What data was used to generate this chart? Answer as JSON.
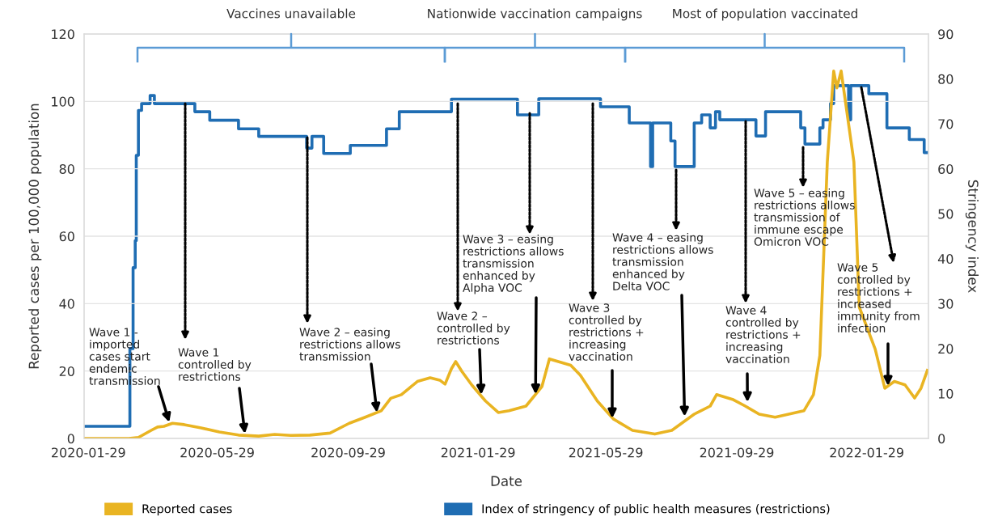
{
  "chart_data": {
    "type": "line",
    "xlabel": "Date",
    "ylabel": "Reported cases per 100,000 population",
    "y2label": "Stringency index",
    "series": [
      {
        "name": "Reported cases",
        "color": "#e9b422",
        "axis": "y",
        "x": [
          "2020-01-25",
          "2020-03-07",
          "2020-03-16",
          "2020-03-28",
          "2020-04-03",
          "2020-04-09",
          "2020-04-17",
          "2020-04-28",
          "2020-05-13",
          "2020-05-31",
          "2020-06-18",
          "2020-07-07",
          "2020-07-22",
          "2020-08-06",
          "2020-08-24",
          "2020-09-12",
          "2020-09-30",
          "2020-10-15",
          "2020-10-30",
          "2020-11-08",
          "2020-11-18",
          "2020-12-03",
          "2020-12-15",
          "2020-12-24",
          "2020-12-29",
          "2021-01-04",
          "2021-01-08",
          "2021-01-14",
          "2021-01-23",
          "2021-02-05",
          "2021-02-17",
          "2021-02-27",
          "2021-03-15",
          "2021-03-30",
          "2021-04-06",
          "2021-04-26",
          "2021-05-05",
          "2021-05-21",
          "2021-06-05",
          "2021-06-23",
          "2021-07-14",
          "2021-07-30",
          "2021-08-20",
          "2021-09-04",
          "2021-09-10",
          "2021-09-25",
          "2021-10-07",
          "2021-10-20",
          "2021-11-04",
          "2021-12-01",
          "2021-12-10",
          "2021-12-16",
          "2021-12-23",
          "2021-12-29",
          "2022-01-01",
          "2022-01-05",
          "2022-01-17",
          "2022-01-22",
          "2022-02-06",
          "2022-02-15",
          "2022-02-24",
          "2022-03-06",
          "2022-03-15",
          "2022-03-21",
          "2022-03-27"
        ],
        "values": [
          0,
          0,
          0.3,
          2.4,
          3.4,
          3.6,
          4.5,
          4.1,
          3.2,
          1.9,
          1.0,
          0.7,
          1.2,
          0.9,
          1.0,
          1.6,
          4.5,
          6.3,
          8.2,
          11.9,
          13.0,
          16.9,
          18.0,
          17.3,
          16.1,
          20.7,
          22.8,
          19.8,
          15.9,
          11.1,
          7.7,
          8.2,
          9.6,
          15.4,
          23.6,
          21.7,
          18.8,
          11.1,
          5.8,
          2.4,
          1.3,
          2.4,
          7.2,
          9.6,
          13.0,
          11.6,
          9.6,
          7.2,
          6.3,
          8.2,
          13.0,
          24.6,
          82,
          109,
          104,
          109,
          82,
          39,
          26.5,
          14.9,
          16.9,
          15.9,
          12.0,
          14.9,
          20.2
        ]
      },
      {
        "name": "Index of stringency of public health measures (restrictions)",
        "color": "#1f6db3",
        "type": "step",
        "axis": "y2",
        "x": [
          "2020-01-25",
          "2020-03-08",
          "2020-03-11",
          "2020-03-13",
          "2020-03-14",
          "2020-03-16",
          "2020-03-19",
          "2020-03-27",
          "2020-03-31",
          "2020-05-08",
          "2020-05-22",
          "2020-06-18",
          "2020-07-07",
          "2020-08-21",
          "2020-08-26",
          "2020-09-06",
          "2020-10-01",
          "2020-11-04",
          "2020-11-16",
          "2021-01-04",
          "2021-03-07",
          "2021-03-27",
          "2021-05-24",
          "2021-06-20",
          "2021-07-10",
          "2021-07-12",
          "2021-07-29",
          "2021-08-02",
          "2021-08-20",
          "2021-08-27",
          "2021-09-04",
          "2021-09-09",
          "2021-09-13",
          "2021-10-17",
          "2021-10-26",
          "2021-11-28",
          "2021-12-02",
          "2021-12-16",
          "2021-12-19",
          "2021-12-26",
          "2021-12-29",
          "2022-01-12",
          "2022-01-14",
          "2022-01-31",
          "2022-02-17",
          "2022-03-10",
          "2022-03-24",
          "2022-03-27"
        ],
        "values": [
          2.7,
          20,
          38,
          44,
          63,
          73,
          74.5,
          76.3,
          74.5,
          72.7,
          70.8,
          68.9,
          67.2,
          64.6,
          67.2,
          63.4,
          65.2,
          68.9,
          72.7,
          75.5,
          72.0,
          75.6,
          73.8,
          70.2,
          60.5,
          70.2,
          66.2,
          60.5,
          70.2,
          72.0,
          69.1,
          72.7,
          70.9,
          67.3,
          72.7,
          69.1,
          65.5,
          69.1,
          70.9,
          74.5,
          78.5,
          70.9,
          78.5,
          76.7,
          69.1,
          66.5,
          63.6,
          63.6
        ]
      }
    ],
    "xlim": [
      "2020-01-25",
      "2022-03-28"
    ],
    "xticks": [
      "2020-01-29",
      "2020-05-29",
      "2020-09-29",
      "2021-01-29",
      "2021-05-29",
      "2021-09-29",
      "2022-01-29"
    ],
    "ylim": [
      0,
      120
    ],
    "yticks": [
      0,
      20,
      40,
      60,
      80,
      100,
      120
    ],
    "y2lim": [
      0,
      90
    ],
    "y2ticks": [
      0,
      10,
      20,
      30,
      40,
      50,
      60,
      70,
      80,
      90
    ],
    "grid": "y",
    "legend": "bottom",
    "annotations": [
      "Vaccines unavailable",
      "Nationwide vaccination campaigns",
      "Most of population vaccinated",
      {
        "text": "Wave 1 -\nimported\ncases start\nendemic\ntransmission",
        "x": "2020-04-14",
        "y": 4.8
      },
      {
        "text": "Wave 1\ncontrolled by\nrestrictions",
        "x": "2020-06-24",
        "y": 1.4
      },
      {
        "text": "Wave 2 – easing\nrestrictions allows\ntransmission",
        "x": "2020-10-26",
        "y": 7.7
      },
      {
        "text": "Wave 2 –\ncontrolled by\nrestrictions",
        "x": "2021-02-01",
        "y": 13.0
      },
      {
        "text": "Wave 3 – easing\nrestrictions allows\ntransmission\nenhanced by\nAlpha VOC",
        "x": "2021-03-24",
        "y": 13.1
      },
      {
        "text": "Wave 3\ncontrolled by\nrestrictions +\nincreasing\nvaccination",
        "x": "2021-06-04",
        "y": 6.0
      },
      {
        "text": "Wave 4 – easing\nrestrictions allows\ntransmission\nenhanced by\nDelta VOC",
        "x": "2021-08-11",
        "y": 6.5
      },
      {
        "text": "Wave 4\ncontrolled by\nrestrictions +\nincreasing\nvaccination",
        "x": "2021-10-09",
        "y": 10.8
      },
      "Wave 5 – easing\nrestrictions allows\ntransmission of\nimmune escape\nOmicron VOC",
      {
        "text": "Wave 5\ncontrolled by\nrestrictions +\nincreased\nimmunity from\ninfection",
        "x": "2022-02-18",
        "y": 15.6
      }
    ]
  }
}
